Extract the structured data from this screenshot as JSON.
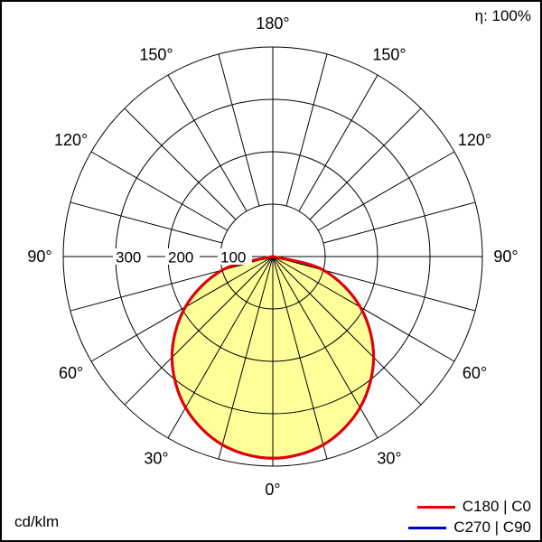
{
  "header": {
    "efficiency_label": "η: 100%"
  },
  "footer": {
    "units_label": "cd/klm"
  },
  "legend": [
    {
      "label": "C180 | C0",
      "color": "#e60000"
    },
    {
      "label": "C270 | C90",
      "color": "#0000cc"
    }
  ],
  "chart_data": {
    "type": "polar",
    "subtype": "luminous-intensity-distribution",
    "units": "cd/klm",
    "efficiency": "100%",
    "radial_ticks": [
      100,
      200,
      300
    ],
    "radial_max": 400,
    "spoke_step_deg": 15,
    "angle_ticks_deg": [
      0,
      30,
      60,
      90,
      120,
      150,
      180
    ],
    "angle_label_suffix": "°",
    "grid_color": "#000000",
    "curve_fill": "#ffff99",
    "legend_position": "bottom-right",
    "series": [
      {
        "name": "C180 | C0",
        "color": "#e60000",
        "fill": "#ffff99",
        "angles_deg": [
          -90,
          -75,
          -60,
          -45,
          -30,
          -15,
          0,
          15,
          30,
          45,
          60,
          75,
          90
        ],
        "values": [
          0,
          100,
          193,
          272,
          333,
          372,
          385,
          372,
          333,
          272,
          193,
          100,
          0
        ]
      },
      {
        "name": "C270 | C90",
        "color": "#0000cc",
        "fill": null,
        "angles_deg": [
          -90,
          -75,
          -60,
          -45,
          -30,
          -15,
          0,
          15,
          30,
          45,
          60,
          75,
          90
        ],
        "values": [
          0,
          100,
          193,
          272,
          333,
          372,
          385,
          372,
          333,
          272,
          193,
          100,
          0
        ]
      }
    ]
  }
}
